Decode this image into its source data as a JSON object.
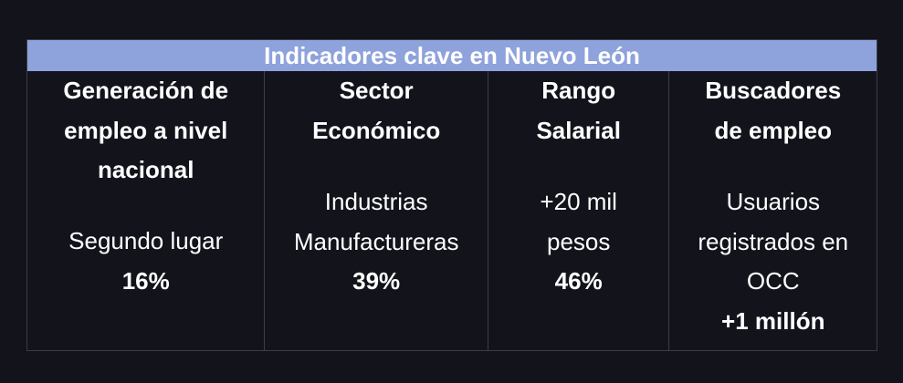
{
  "title": "Indicadores clave en Nuevo León",
  "columns": [
    {
      "heading": [
        "Generación de",
        "empleo a nivel",
        "nacional"
      ],
      "body": [
        "Segundo lugar"
      ],
      "value": "16%"
    },
    {
      "heading": [
        "Sector",
        "Económico"
      ],
      "body": [
        "Industrias",
        "Manufactureras"
      ],
      "value": "39%"
    },
    {
      "heading": [
        "Rango",
        "Salarial"
      ],
      "body": [
        "+20 mil",
        "pesos"
      ],
      "value": "46%"
    },
    {
      "heading": [
        "Buscadores",
        "de empleo"
      ],
      "body": [
        "Usuarios",
        "registrados en",
        "OCC"
      ],
      "value": "+1 millón"
    }
  ]
}
